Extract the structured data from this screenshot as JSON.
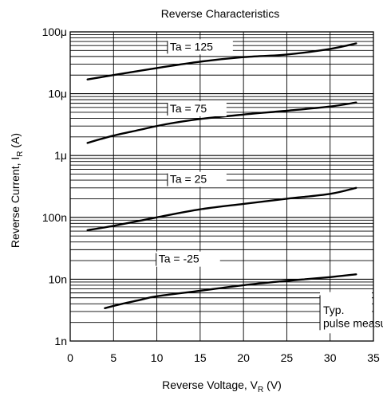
{
  "chart_data": {
    "type": "line",
    "title": "Reverse Characteristics",
    "xlabel": {
      "main": "Reverse Voltage, V",
      "sub": "R",
      "unit": " (V)"
    },
    "ylabel": {
      "main": "Reverse Current, I",
      "sub": "R",
      "unit": " (A)"
    },
    "xlim": [
      0,
      35
    ],
    "ylim": [
      1e-09,
      0.0001
    ],
    "yscale": "log",
    "grid": true,
    "x_ticks": [
      0,
      5,
      10,
      15,
      20,
      25,
      30,
      35
    ],
    "x_tick_labels": [
      "0",
      "5",
      "10",
      "15",
      "20",
      "25",
      "30",
      "35"
    ],
    "y_ticks": [
      1e-09,
      1e-08,
      1e-07,
      1e-06,
      1e-05,
      0.0001
    ],
    "y_tick_labels": [
      "1n",
      "10n",
      "100n",
      "1μ",
      "10μ",
      "100μ"
    ],
    "series": [
      {
        "name": "Ta = 125",
        "x": [
          2,
          5,
          10,
          15,
          20,
          25,
          30,
          33
        ],
        "y": [
          1.7e-05,
          2e-05,
          2.6e-05,
          3.3e-05,
          3.9e-05,
          4.3e-05,
          5.3e-05,
          6.5e-05
        ]
      },
      {
        "name": "Ta = 75",
        "x": [
          2,
          5,
          8,
          11,
          15,
          20,
          25,
          30,
          33
        ],
        "y": [
          1.6e-06,
          2.1e-06,
          2.6e-06,
          3.2e-06,
          3.9e-06,
          4.6e-06,
          5.3e-06,
          6.2e-06,
          7.2e-06
        ]
      },
      {
        "name": "Ta = 25",
        "x": [
          2,
          5,
          10,
          15,
          20,
          25,
          30,
          33
        ],
        "y": [
          6.2e-08,
          7.3e-08,
          1e-07,
          1.35e-07,
          1.65e-07,
          2e-07,
          2.4e-07,
          3e-07
        ]
      },
      {
        "name": "Ta = -25",
        "x": [
          4,
          6,
          8,
          10,
          15,
          20,
          25,
          30,
          33
        ],
        "y": [
          3.4e-09,
          4e-09,
          4.6e-09,
          5.3e-09,
          6.5e-09,
          8e-09,
          9.4e-09,
          1.08e-08,
          1.2e-08
        ]
      }
    ],
    "annotations": [
      "Ta = 125",
      "Ta = 75",
      "Ta = 25",
      "Ta = -25"
    ],
    "note": [
      "Typ.",
      "pulse measurement"
    ]
  }
}
